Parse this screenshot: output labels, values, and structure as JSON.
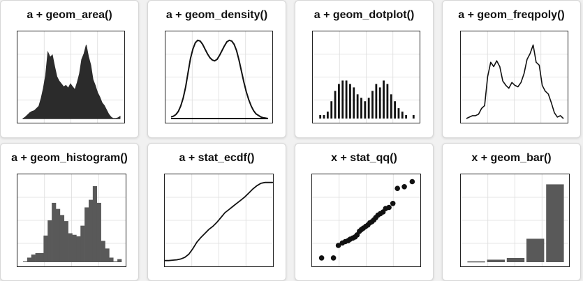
{
  "chart_data": [
    {
      "id": "area",
      "type": "area",
      "title": "a + geom_area()",
      "fill": "#2b2b2b",
      "x": [
        0,
        1,
        2,
        3,
        4,
        5,
        6,
        7,
        8,
        9,
        10,
        11,
        12,
        13,
        14,
        15,
        16,
        17,
        18,
        19,
        20,
        21,
        22,
        23,
        24,
        25,
        26,
        27,
        28,
        29,
        30,
        31,
        32,
        33,
        34,
        35,
        36,
        37,
        38,
        39,
        40,
        41,
        42,
        43
      ],
      "values": [
        0,
        2,
        5,
        8,
        10,
        11,
        14,
        17,
        28,
        42,
        60,
        92,
        85,
        88,
        72,
        58,
        52,
        48,
        44,
        46,
        42,
        48,
        44,
        40,
        50,
        62,
        82,
        90,
        102,
        86,
        74,
        54,
        46,
        36,
        30,
        22,
        18,
        12,
        6,
        2,
        0,
        0,
        1,
        3
      ],
      "ylim": [
        0,
        115
      ]
    },
    {
      "id": "density",
      "type": "line",
      "title": "a + geom_density()",
      "color": "#111111",
      "x": [
        0,
        1,
        2,
        3,
        4,
        5,
        6,
        7,
        8,
        9,
        10,
        11,
        12,
        13,
        14,
        15,
        16,
        17,
        18,
        19,
        20,
        21,
        22,
        23,
        24,
        25,
        26,
        27,
        28,
        29,
        30,
        31,
        32,
        33,
        34,
        35,
        36,
        37,
        38,
        39,
        40
      ],
      "values": [
        2,
        3,
        5,
        9,
        16,
        26,
        40,
        58,
        76,
        88,
        96,
        99,
        98,
        94,
        88,
        82,
        77,
        74,
        73,
        75,
        80,
        86,
        92,
        97,
        99,
        98,
        94,
        86,
        74,
        60,
        46,
        34,
        24,
        16,
        10,
        6,
        4,
        2,
        1,
        0.5,
        0
      ],
      "ylim": [
        0,
        105
      ]
    },
    {
      "id": "dotplot",
      "type": "bar",
      "title": "a + geom_dotplot()",
      "color": "#111111",
      "values": [
        1,
        1,
        2,
        5,
        8,
        10,
        11,
        11,
        10,
        9,
        7,
        6,
        5,
        6,
        8,
        10,
        9,
        11,
        10,
        7,
        5,
        3,
        2,
        1,
        0,
        1
      ],
      "ylim": [
        0,
        24
      ]
    },
    {
      "id": "freqpoly",
      "type": "line",
      "title": "a + geom_freqpoly()",
      "color": "#111111",
      "values": [
        0,
        2,
        4,
        4,
        6,
        14,
        18,
        58,
        78,
        72,
        80,
        72,
        52,
        46,
        42,
        50,
        46,
        44,
        50,
        62,
        82,
        90,
        102,
        78,
        74,
        46,
        38,
        34,
        22,
        8,
        2,
        4,
        0
      ],
      "ylim": [
        0,
        115
      ]
    },
    {
      "id": "histogram",
      "type": "bar",
      "title": "a + geom_histogram()",
      "fill": "#595959",
      "values": [
        1,
        6,
        10,
        12,
        12,
        35,
        55,
        78,
        70,
        62,
        54,
        38,
        36,
        34,
        48,
        72,
        82,
        100,
        78,
        28,
        18,
        6,
        1,
        4
      ],
      "ylim": [
        0,
        110
      ]
    },
    {
      "id": "ecdf",
      "type": "line",
      "title": "a + stat_ecdf()",
      "color": "#111111",
      "values": [
        0.02,
        0.02,
        0.025,
        0.03,
        0.04,
        0.06,
        0.1,
        0.17,
        0.25,
        0.31,
        0.36,
        0.41,
        0.45,
        0.5,
        0.56,
        0.62,
        0.66,
        0.7,
        0.74,
        0.78,
        0.82,
        0.87,
        0.92,
        0.96,
        0.99,
        1.0,
        1.0,
        1.0
      ],
      "ylim": [
        0,
        1.05
      ]
    },
    {
      "id": "qq",
      "type": "scatter",
      "title": "x + stat_qq()",
      "color": "#111111",
      "x": [
        -2.3,
        -1.7,
        -1.45,
        -1.25,
        -1.1,
        -0.95,
        -0.85,
        -0.72,
        -0.6,
        -0.5,
        -0.38,
        -0.28,
        -0.18,
        -0.06,
        0.05,
        0.15,
        0.25,
        0.35,
        0.45,
        0.56,
        0.68,
        0.82,
        0.95,
        1.12,
        1.32,
        1.55,
        1.9,
        2.3
      ],
      "y": [
        -2.6,
        -2.6,
        -1.72,
        -1.55,
        -1.45,
        -1.38,
        -1.28,
        -1.2,
        -1.12,
        -0.98,
        -0.72,
        -0.6,
        -0.5,
        -0.38,
        -0.28,
        -0.12,
        -0.05,
        0.08,
        0.24,
        0.42,
        0.52,
        0.64,
        0.88,
        0.96,
        1.24,
        2.3,
        2.42,
        2.78
      ],
      "xlim": [
        -2.5,
        2.5
      ],
      "ylim": [
        -2.9,
        3.0
      ]
    },
    {
      "id": "bar",
      "type": "bar",
      "title": "x + geom_bar()",
      "fill": "#595959",
      "values": [
        1,
        3,
        5,
        28,
        93
      ],
      "ylim": [
        0,
        100
      ]
    }
  ]
}
